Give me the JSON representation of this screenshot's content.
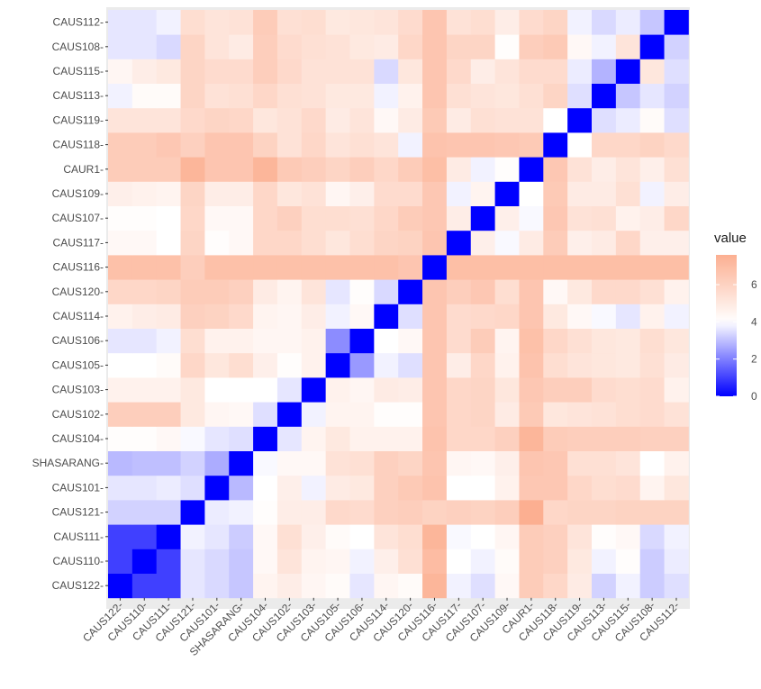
{
  "chart_data": {
    "type": "heatmap",
    "x_categories": [
      "CAUS122-",
      "CAUS110-",
      "CAUS111-",
      "CAUS121-",
      "CAUS101-",
      "SHASARANG-",
      "CAUS104-",
      "CAUS102-",
      "CAUS103-",
      "CAUS105-",
      "CAUS106-",
      "CAUS114-",
      "CAUS120-",
      "CAUS116-",
      "CAUS117-",
      "CAUS107-",
      "CAUS109-",
      "CAUR1-",
      "CAUS118-",
      "CAUS119-",
      "CAUS113-",
      "CAUS115-",
      "CAUS108-",
      "CAUS112-"
    ],
    "y_categories_top_to_bottom": [
      "CAUS112-",
      "CAUS108-",
      "CAUS115-",
      "CAUS113-",
      "CAUS119-",
      "CAUS118-",
      "CAUR1-",
      "CAUS109-",
      "CAUS107-",
      "CAUS117-",
      "CAUS116-",
      "CAUS120-",
      "CAUS114-",
      "CAUS106-",
      "CAUS105-",
      "CAUS103-",
      "CAUS102-",
      "CAUS104-",
      "SHASARANG-",
      "CAUS101-",
      "CAUS121-",
      "CAUS111-",
      "CAUS110-",
      "CAUS122-"
    ],
    "values": [
      [
        0,
        1,
        1,
        3.6,
        3.4,
        3.1,
        4.5,
        4.8,
        4.4,
        4.2,
        3.6,
        4.4,
        4.2,
        7.3,
        3.8,
        3.5,
        4.3,
        6.3,
        5.8,
        4.9,
        3.3,
        3.8,
        3.2,
        3.5
      ],
      [
        1,
        0,
        1,
        3.6,
        3.4,
        3.1,
        4.3,
        5.2,
        4.5,
        4.4,
        3.8,
        4.7,
        5.4,
        7.0,
        4.0,
        3.8,
        4.2,
        6.3,
        6.1,
        5.0,
        3.8,
        4.1,
        3.2,
        3.7
      ],
      [
        1,
        1,
        0,
        3.8,
        3.6,
        3.2,
        4.3,
        5.4,
        4.7,
        4.2,
        4.0,
        5.2,
        5.5,
        7.3,
        3.9,
        4.0,
        4.4,
        6.3,
        6.1,
        5.2,
        4.1,
        4.3,
        3.4,
        3.8
      ],
      [
        3.3,
        3.3,
        3.3,
        0,
        3.7,
        3.8,
        4.1,
        4.8,
        4.8,
        5.7,
        5.6,
        6.1,
        6.2,
        6.0,
        6.1,
        6.0,
        6.2,
        7.6,
        5.8,
        5.9,
        5.9,
        6.0,
        6.0,
        6.0
      ],
      [
        3.6,
        3.6,
        3.7,
        3.5,
        0,
        2.9,
        4.0,
        4.7,
        3.8,
        4.9,
        5.0,
        6.1,
        6.4,
        6.7,
        4.0,
        4.0,
        4.6,
        6.5,
        6.5,
        5.8,
        5.5,
        5.6,
        4.5,
        5.1
      ],
      [
        2.9,
        3.0,
        3.0,
        3.3,
        2.7,
        0,
        3.9,
        4.3,
        4.3,
        5.3,
        5.4,
        6.1,
        5.9,
        6.6,
        4.4,
        4.3,
        4.7,
        6.6,
        6.5,
        5.4,
        5.4,
        5.2,
        4.0,
        4.6
      ],
      [
        4.1,
        4.1,
        4.3,
        3.9,
        3.6,
        3.5,
        0,
        3.6,
        4.5,
        5.0,
        4.6,
        4.6,
        4.6,
        6.7,
        5.8,
        5.8,
        6.1,
        7.3,
        6.3,
        6.2,
        6.2,
        6.2,
        6.1,
        6.1
      ],
      [
        6.2,
        6.2,
        6.2,
        5.0,
        4.4,
        4.3,
        3.5,
        0,
        3.8,
        4.5,
        4.5,
        4.1,
        4.1,
        6.6,
        5.8,
        5.9,
        4.9,
        6.4,
        5.1,
        5.2,
        5.3,
        5.5,
        5.6,
        5.3
      ],
      [
        4.6,
        4.6,
        4.6,
        5.0,
        4.0,
        4.0,
        4.0,
        3.6,
        0,
        4.6,
        4.4,
        4.9,
        4.8,
        6.6,
        5.8,
        5.9,
        5.1,
        6.5,
        6.2,
        6.2,
        5.6,
        5.5,
        5.6,
        4.6
      ],
      [
        4.0,
        4.0,
        4.2,
        5.8,
        5.1,
        5.5,
        4.7,
        4.1,
        4.6,
        0,
        2.4,
        3.8,
        3.5,
        6.6,
        4.8,
        5.8,
        4.6,
        6.7,
        5.5,
        5.2,
        5.1,
        5.0,
        5.4,
        4.9
      ],
      [
        3.6,
        3.6,
        3.8,
        5.5,
        4.6,
        4.6,
        4.4,
        4.4,
        4.6,
        2.2,
        0,
        4.0,
        4.3,
        6.6,
        5.6,
        6.3,
        4.5,
        6.8,
        5.8,
        5.4,
        5.1,
        5.0,
        5.5,
        5.1
      ],
      [
        4.6,
        4.8,
        4.9,
        6.1,
        6.0,
        5.7,
        4.5,
        4.4,
        4.8,
        3.8,
        4.3,
        0,
        3.5,
        6.6,
        5.6,
        5.7,
        5.8,
        6.6,
        5.0,
        4.3,
        3.9,
        3.6,
        4.6,
        3.8
      ],
      [
        5.8,
        5.8,
        5.9,
        6.3,
        6.3,
        6.1,
        4.9,
        4.5,
        5.2,
        3.6,
        4.1,
        3.4,
        0,
        6.6,
        6.2,
        6.5,
        5.5,
        6.6,
        4.3,
        5.0,
        5.7,
        5.7,
        5.4,
        4.6
      ],
      [
        6.8,
        6.8,
        6.8,
        6.2,
        6.8,
        6.8,
        6.8,
        6.8,
        6.8,
        6.8,
        6.8,
        6.8,
        6.6,
        0,
        6.9,
        6.9,
        6.9,
        6.9,
        6.9,
        6.9,
        6.9,
        6.9,
        6.9,
        6.9
      ],
      [
        4.3,
        4.3,
        4.0,
        5.9,
        4.1,
        4.3,
        5.8,
        5.8,
        5.5,
        5.1,
        5.5,
        5.9,
        6.0,
        6.6,
        0,
        4.7,
        3.9,
        4.9,
        6.3,
        4.7,
        4.9,
        5.8,
        4.7,
        4.7
      ],
      [
        4.1,
        4.1,
        4.0,
        5.8,
        4.3,
        4.3,
        5.8,
        6.1,
        5.5,
        5.5,
        5.4,
        5.8,
        6.3,
        6.5,
        4.8,
        0,
        4.7,
        3.9,
        6.5,
        5.3,
        5.4,
        4.6,
        4.8,
        5.8
      ],
      [
        4.7,
        4.6,
        4.5,
        5.9,
        4.8,
        4.8,
        5.8,
        5.1,
        5.3,
        4.4,
        4.7,
        5.6,
        5.6,
        6.5,
        3.8,
        4.5,
        0,
        4.0,
        6.4,
        4.9,
        4.9,
        5.4,
        3.8,
        4.8
      ],
      [
        6.3,
        6.3,
        6.3,
        7.3,
        6.6,
        6.6,
        7.3,
        6.4,
        6.2,
        5.9,
        6.2,
        5.8,
        6.3,
        6.9,
        4.9,
        3.8,
        4.1,
        0,
        6.5,
        5.3,
        4.8,
        5.2,
        4.7,
        5.4
      ],
      [
        6.3,
        6.3,
        6.5,
        6.1,
        6.6,
        6.6,
        6.0,
        5.3,
        5.8,
        5.2,
        5.4,
        5.2,
        3.8,
        6.7,
        6.6,
        6.6,
        6.5,
        6.4,
        0,
        4.0,
        5.8,
        5.8,
        6.0,
        5.7
      ],
      [
        5.2,
        5.2,
        5.2,
        5.7,
        5.9,
        5.8,
        5.1,
        5.3,
        5.7,
        4.9,
        5.2,
        4.3,
        4.9,
        6.4,
        4.9,
        5.4,
        5.3,
        5.3,
        4.0,
        0,
        3.5,
        3.7,
        4.2,
        3.5
      ],
      [
        3.8,
        4.2,
        4.2,
        5.9,
        5.3,
        5.4,
        5.8,
        5.4,
        5.3,
        5.0,
        5.0,
        3.8,
        4.6,
        6.6,
        5.4,
        5.2,
        5.1,
        5.4,
        5.9,
        3.5,
        0,
        3.1,
        3.6,
        3.3
      ],
      [
        4.4,
        4.8,
        5.0,
        5.9,
        5.6,
        5.6,
        6.2,
        5.7,
        5.3,
        5.3,
        5.3,
        3.4,
        5.1,
        6.6,
        5.7,
        4.8,
        5.2,
        5.6,
        5.6,
        3.7,
        2.8,
        0,
        5.1,
        3.5
      ],
      [
        3.6,
        3.6,
        3.4,
        5.9,
        5.2,
        4.9,
        6.2,
        5.6,
        5.4,
        5.3,
        5.0,
        4.9,
        5.8,
        6.6,
        5.9,
        5.9,
        4.1,
        6.2,
        6.4,
        4.3,
        3.8,
        5.2,
        0,
        3.3
      ],
      [
        3.6,
        3.6,
        3.8,
        5.5,
        5.2,
        5.3,
        6.3,
        5.4,
        5.5,
        5.0,
        5.1,
        5.2,
        5.6,
        6.6,
        5.3,
        5.5,
        4.8,
        5.6,
        5.9,
        3.8,
        3.4,
        3.7,
        3.1,
        0
      ]
    ],
    "color_scale": {
      "low": "#0000ff",
      "mid": "#ffffff",
      "high": "#fcaf91",
      "min": 0,
      "mid_value": 4,
      "max": 7.6
    },
    "legend": {
      "title": "value",
      "ticks": [
        0,
        2,
        4,
        6
      ],
      "placement": "right"
    },
    "background": "#ebebeb",
    "grid": true
  }
}
